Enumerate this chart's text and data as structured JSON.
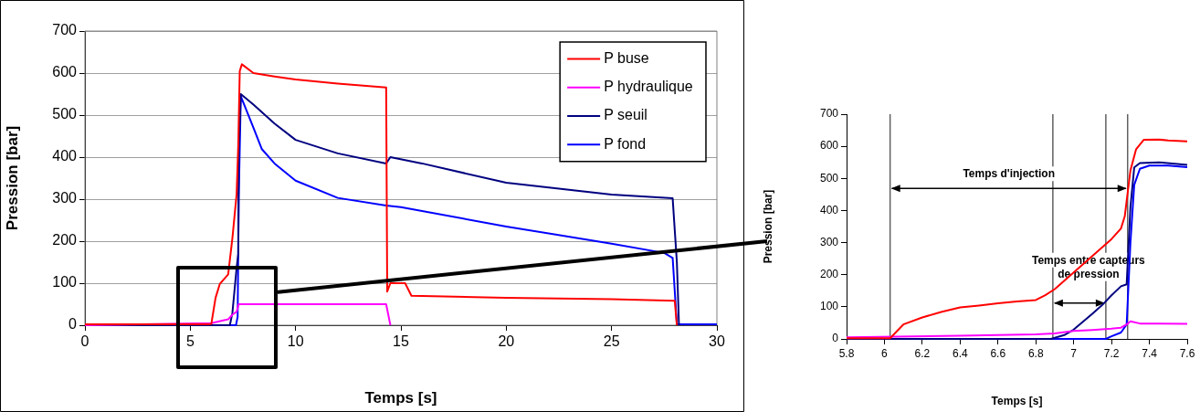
{
  "chart_data": [
    {
      "type": "line",
      "xlabel": "Temps [s]",
      "ylabel": "Pression [bar]",
      "xlim": [
        0,
        30
      ],
      "xticks": [
        0,
        5,
        10,
        15,
        20,
        25,
        30
      ],
      "ylim": [
        0,
        700
      ],
      "yticks": [
        0,
        100,
        200,
        300,
        400,
        500,
        600,
        700
      ],
      "grid": "y",
      "legend": "top right",
      "marker": "none",
      "line_style": "solid",
      "series": [
        {
          "name": "P buse",
          "color": "#ff0000",
          "x": [
            0,
            5.9,
            6.0,
            6.2,
            6.4,
            6.8,
            7.0,
            7.2,
            7.28,
            7.35,
            7.45,
            8,
            9,
            10,
            12,
            14.3,
            14.35,
            14.5,
            15.2,
            15.5,
            20,
            25,
            28,
            28.1
          ],
          "values": [
            2,
            2,
            3,
            65,
            98,
            121,
            207,
            311,
            430,
            605,
            621,
            600,
            592,
            585,
            575,
            566,
            80,
            100,
            100,
            70,
            65,
            62,
            58,
            0
          ]
        },
        {
          "name": "P hydraulique",
          "color": "#ff00ff",
          "x": [
            0,
            6.0,
            6.8,
            7.0,
            7.2,
            7.3,
            14.3,
            14.5
          ],
          "values": [
            0,
            5,
            14,
            25,
            32,
            50,
            50,
            0
          ]
        },
        {
          "name": "P seuil",
          "color": "#000080",
          "x": [
            0,
            6.88,
            7.0,
            7.2,
            7.28,
            7.3,
            7.4,
            8,
            9,
            10,
            12,
            14.3,
            14.5,
            16,
            20,
            25,
            27.9,
            28.1,
            28.2
          ],
          "values": [
            0,
            0,
            29,
            136,
            170,
            411,
            550,
            525,
            480,
            441,
            409,
            385,
            400,
            385,
            339,
            311,
            302,
            150,
            0
          ]
        },
        {
          "name": "P fond",
          "color": "#0000ff",
          "x": [
            0,
            7.17,
            7.25,
            7.3,
            7.4,
            8,
            8.4,
            9,
            10,
            12,
            14.3,
            15,
            20,
            25,
            27.5,
            27.9,
            28.1,
            30
          ],
          "values": [
            0,
            0,
            20,
            300,
            545,
            470,
            419,
            385,
            344,
            303,
            285,
            281,
            235,
            194,
            172,
            160,
            2,
            2
          ]
        }
      ]
    },
    {
      "type": "line",
      "xlabel": "Temps [s]",
      "ylabel": "Pression [bar]",
      "xlim": [
        5.8,
        7.6
      ],
      "xticks": [
        5.8,
        6,
        6.2,
        6.4,
        6.6,
        6.8,
        7,
        7.2,
        7.4,
        7.6
      ],
      "ylim": [
        0,
        700
      ],
      "yticks": [
        0,
        100,
        200,
        300,
        400,
        500,
        600,
        700
      ],
      "marker": "none",
      "line_style": "solid",
      "ref_lines": [
        {
          "axis": "x",
          "value": 6.03,
          "color": "#606060"
        },
        {
          "axis": "x",
          "value": 6.89,
          "color": "#606060"
        },
        {
          "axis": "x",
          "value": 7.17,
          "color": "#606060"
        },
        {
          "axis": "x",
          "value": 7.285,
          "color": "#606060"
        }
      ],
      "annotations": [
        "Temps d'injection",
        "Temps entre capteurs de pression"
      ],
      "series": [
        {
          "color": "#ff0000",
          "x": [
            5.8,
            6.03,
            6.1,
            6.2,
            6.3,
            6.4,
            6.5,
            6.6,
            6.7,
            6.8,
            6.85,
            6.9,
            7.0,
            7.1,
            7.2,
            7.25,
            7.27,
            7.28,
            7.3,
            7.33,
            7.37,
            7.45,
            7.5,
            7.6
          ],
          "values": [
            2,
            2,
            45,
            67,
            84,
            98,
            104,
            111,
            117,
            121,
            136,
            155,
            207,
            259,
            311,
            344,
            382,
            430,
            525,
            591,
            620,
            621,
            618,
            615
          ]
        },
        {
          "color": "#ff00ff",
          "x": [
            5.8,
            6.4,
            6.8,
            6.9,
            7.0,
            7.1,
            7.2,
            7.25,
            7.28,
            7.3,
            7.35,
            7.6
          ],
          "values": [
            5,
            10,
            14,
            17,
            25,
            28,
            32,
            35,
            45,
            55,
            48,
            47
          ]
        },
        {
          "color": "#000080",
          "x": [
            5.8,
            6.88,
            6.95,
            7.0,
            7.1,
            7.15,
            7.2,
            7.25,
            7.28,
            7.3,
            7.32,
            7.35,
            7.45,
            7.6
          ],
          "values": [
            0,
            0,
            12,
            29,
            79,
            105,
            136,
            164,
            170,
            411,
            534,
            548,
            550,
            542
          ]
        },
        {
          "color": "#0000ff",
          "x": [
            5.8,
            7.17,
            7.2,
            7.25,
            7.28,
            7.3,
            7.32,
            7.35,
            7.4,
            7.5,
            7.6
          ],
          "values": [
            0,
            0,
            8,
            20,
            45,
            300,
            480,
            530,
            540,
            540,
            535
          ]
        }
      ]
    }
  ]
}
